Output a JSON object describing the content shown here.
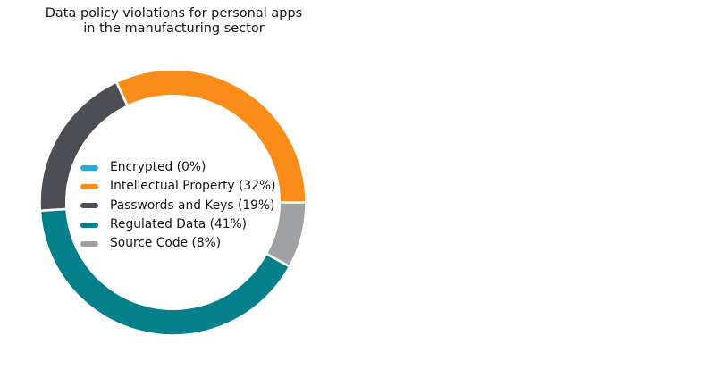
{
  "title": {
    "line1": "Data policy violations for personal apps",
    "line2": "in the manufacturing sector"
  },
  "chart_data": {
    "type": "pie",
    "subtype": "donut",
    "title": "Data policy violations for personal apps in the manufacturing sector",
    "categories": [
      "Encrypted",
      "Intellectual Property",
      "Passwords and Keys",
      "Regulated Data",
      "Source Code"
    ],
    "values": [
      0,
      32,
      19,
      41,
      8
    ],
    "unit": "%",
    "colors": [
      "#29ABDC",
      "#FA8D1A",
      "#4C4E54",
      "#03808C",
      "#A0A1A3"
    ],
    "legend_labels": [
      "Encrypted (0%)",
      "Intellectual Property (32%)",
      "Passwords and Keys (19%)",
      "Regulated Data (41%)",
      "Source Code (8%)"
    ],
    "start_angle": 0,
    "counterclockwise": true,
    "donut_inner_ratio": 0.8,
    "edge_color": "#ffffff",
    "legend_position": "center",
    "legend_frame": false
  }
}
